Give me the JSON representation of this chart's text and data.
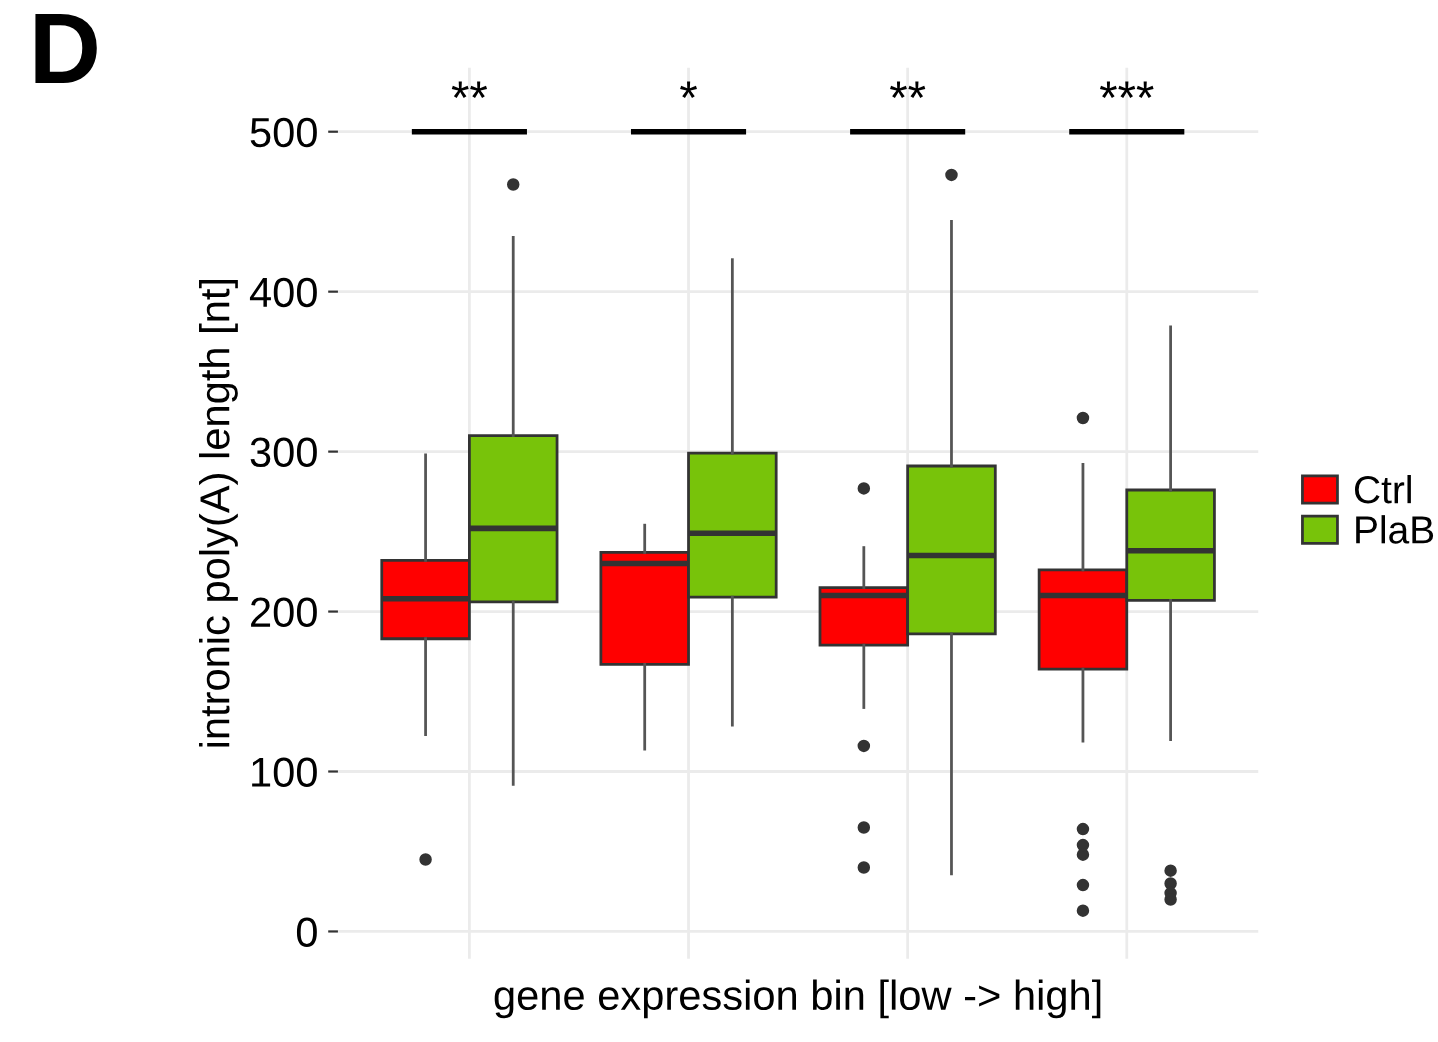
{
  "chart_data": {
    "type": "box",
    "xlabel": "gene expression bin [low -> high]",
    "ylabel": "intronic poly(A) length [nt]",
    "categories": [
      null,
      null,
      null,
      null
    ],
    "series": [
      {
        "name": "Ctrl",
        "color": "#ff0000",
        "boxes": [
          {
            "low": 123,
            "q1": 183,
            "median": 208,
            "q3": 232,
            "high": 298,
            "outliers": [
              45
            ]
          },
          {
            "low": 114,
            "q1": 167,
            "median": 230,
            "q3": 237,
            "high": 254
          },
          {
            "low": 140,
            "q1": 179,
            "median": 210,
            "q3": 215,
            "high": 240,
            "outliers": [
              277,
              116,
              65,
              40
            ]
          },
          {
            "low": 119,
            "q1": 164,
            "median": 210,
            "q3": 226,
            "high": 292,
            "outliers": [
              321,
              64,
              54,
              48,
              29,
              13
            ]
          }
        ]
      },
      {
        "name": "PlaB",
        "color": "#78c30a",
        "boxes": [
          {
            "low": 92,
            "q1": 206,
            "median": 252,
            "q3": 310,
            "high": 434,
            "outliers": [
              467
            ]
          },
          {
            "low": 129,
            "q1": 209,
            "median": 249,
            "q3": 299,
            "high": 420
          },
          {
            "low": 36,
            "q1": 186,
            "median": 235,
            "q3": 291,
            "high": 444,
            "outliers": [
              473
            ]
          },
          {
            "low": 120,
            "q1": 207,
            "median": 238,
            "q3": 276,
            "high": 378,
            "outliers": [
              38,
              30,
              24,
              20
            ]
          }
        ]
      }
    ],
    "ylim": [
      -17,
      540
    ],
    "yticks": [
      0,
      100,
      200,
      300,
      400,
      500
    ],
    "annotations": [
      "D",
      "**",
      "*",
      "**",
      "***"
    ],
    "grid": true,
    "legend": "right"
  }
}
